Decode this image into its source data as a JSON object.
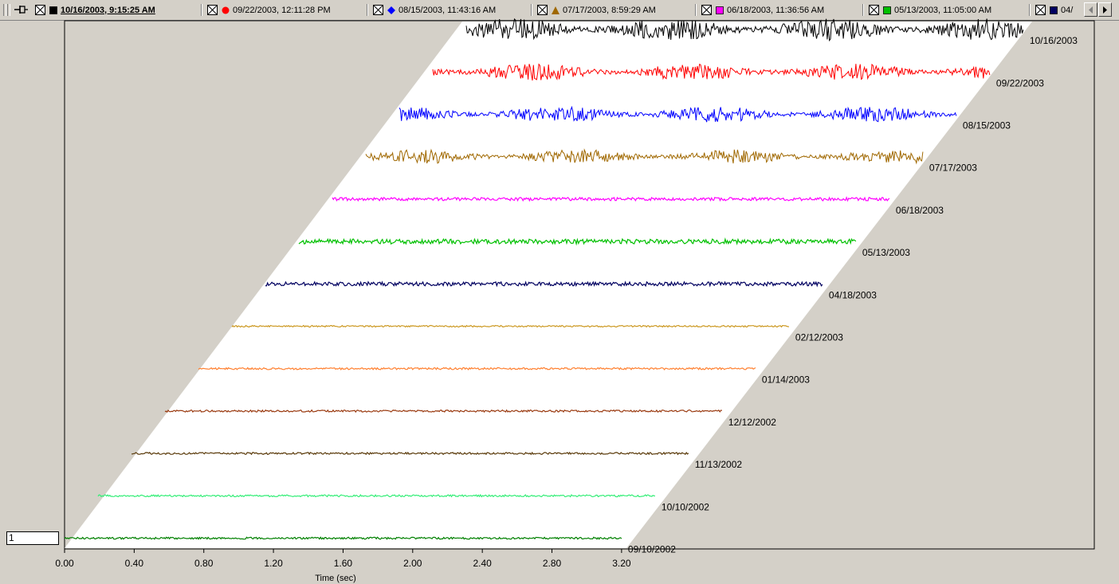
{
  "legend": {
    "items": [
      {
        "label": "10/16/2003,  9:15:25 AM",
        "marker": "square",
        "color": "#000000",
        "active": true
      },
      {
        "label": "09/22/2003, 12:11:28 PM",
        "marker": "circle",
        "color": "#ff0000",
        "active": false
      },
      {
        "label": "08/15/2003, 11:43:16 AM",
        "marker": "diamond",
        "color": "#0000ff",
        "active": false
      },
      {
        "label": "07/17/2003,  8:59:29 AM",
        "marker": "triangle",
        "color": "#a06800",
        "active": false
      },
      {
        "label": "06/18/2003, 11:36:56 AM",
        "marker": "square",
        "color": "#ff00ff",
        "active": false
      },
      {
        "label": "05/13/2003, 11:05:00 AM",
        "marker": "square",
        "color": "#00c000",
        "active": false
      },
      {
        "label": "04/",
        "marker": "square",
        "color": "#000060",
        "active": false
      }
    ]
  },
  "value_box": {
    "text": "1"
  },
  "chart_data": {
    "type": "line",
    "style": "waterfall",
    "xlabel": "Time (sec)",
    "x_ticks": [
      "0.00",
      "0.40",
      "0.80",
      "1.20",
      "1.60",
      "2.00",
      "2.40",
      "2.80",
      "3.20"
    ],
    "xlim": [
      0,
      3.2
    ],
    "grid": false,
    "series": [
      {
        "name": "09/10/2002",
        "color": "#008000",
        "amplitude": 0.012,
        "bursty": false
      },
      {
        "name": "10/10/2002",
        "color": "#33ee77",
        "amplitude": 0.012,
        "bursty": false
      },
      {
        "name": "11/13/2002",
        "color": "#5a3a0a",
        "amplitude": 0.012,
        "bursty": false
      },
      {
        "name": "12/12/2002",
        "color": "#9a3a10",
        "amplitude": 0.012,
        "bursty": false
      },
      {
        "name": "01/14/2003",
        "color": "#ff8030",
        "amplitude": 0.012,
        "bursty": false
      },
      {
        "name": "02/12/2003",
        "color": "#cc9922",
        "amplitude": 0.01,
        "bursty": false
      },
      {
        "name": "04/18/2003",
        "color": "#000060",
        "amplitude": 0.025,
        "bursty": false
      },
      {
        "name": "05/13/2003",
        "color": "#00c000",
        "amplitude": 0.03,
        "bursty": false
      },
      {
        "name": "06/18/2003",
        "color": "#ff00ff",
        "amplitude": 0.02,
        "bursty": false
      },
      {
        "name": "07/17/2003",
        "color": "#a06800",
        "amplitude": 0.09,
        "bursty": true
      },
      {
        "name": "08/15/2003",
        "color": "#0000ff",
        "amplitude": 0.1,
        "bursty": true
      },
      {
        "name": "09/22/2003",
        "color": "#ff0000",
        "amplitude": 0.11,
        "bursty": true
      },
      {
        "name": "10/16/2003",
        "color": "#000000",
        "amplitude": 0.14,
        "bursty": true
      }
    ]
  }
}
